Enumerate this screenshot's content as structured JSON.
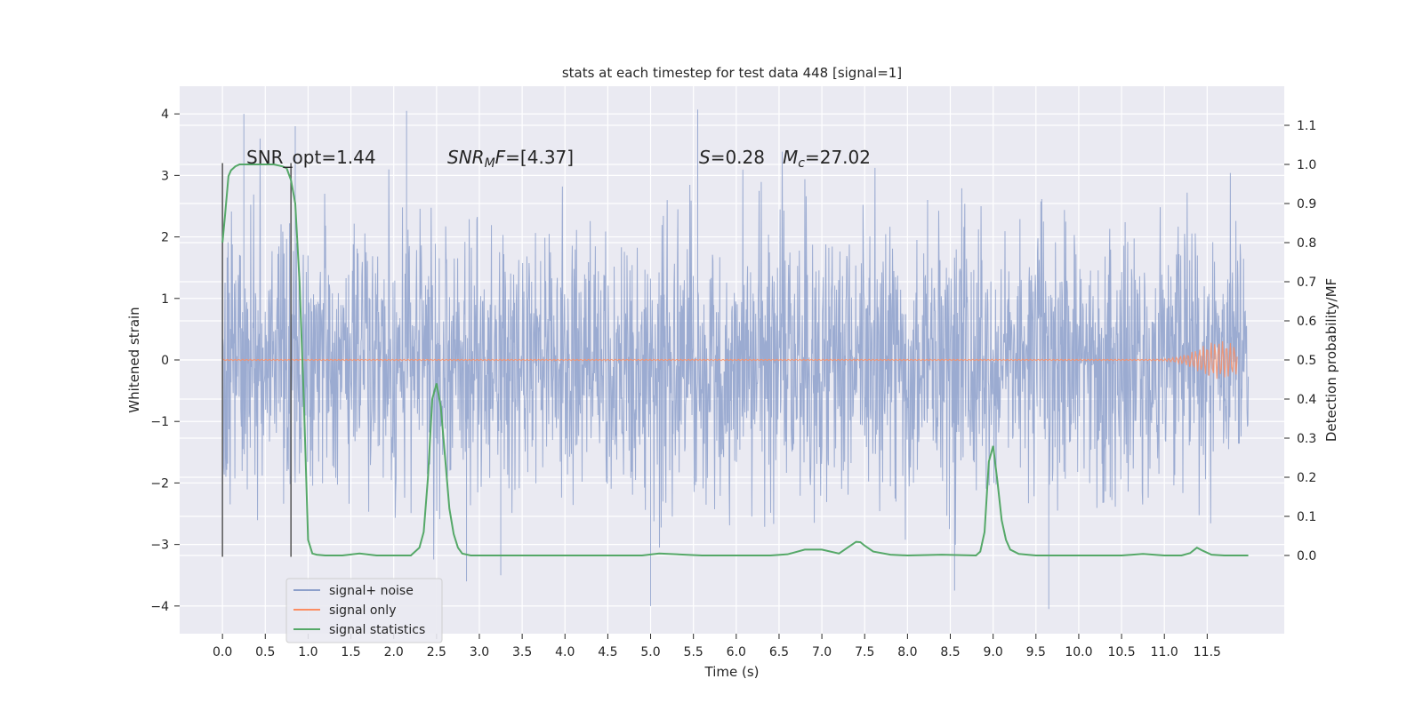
{
  "chart_data": {
    "type": "line",
    "title": "stats at each timestep for test data 448 [signal=1]",
    "xlabel": "Time (s)",
    "ylabel_left": "Whitened strain",
    "ylabel_right": "Detection probability/MF",
    "xlim": [
      -0.5,
      12.4
    ],
    "ylim_left": [
      -4.45,
      4.45
    ],
    "ylim_right": [
      -0.2,
      1.2
    ],
    "xticks": [
      0.0,
      0.5,
      1.0,
      1.5,
      2.0,
      2.5,
      3.0,
      3.5,
      4.0,
      4.5,
      5.0,
      5.5,
      6.0,
      6.5,
      7.0,
      7.5,
      8.0,
      8.5,
      9.0,
      9.5,
      10.0,
      10.5,
      11.0,
      11.5
    ],
    "xtick_labels": [
      "0.0",
      "0.5",
      "1.0",
      "1.5",
      "2.0",
      "2.5",
      "3.0",
      "3.5",
      "4.0",
      "4.5",
      "5.0",
      "5.5",
      "6.0",
      "6.5",
      "7.0",
      "7.5",
      "8.0",
      "8.5",
      "9.0",
      "9.5",
      "10.0",
      "10.5",
      "11.0",
      "11.5"
    ],
    "yticks_left": [
      -4,
      -3,
      -2,
      -1,
      0,
      1,
      2,
      3,
      4
    ],
    "ytick_labels_left": [
      "−4",
      "−3",
      "−2",
      "−1",
      "0",
      "1",
      "2",
      "3",
      "4"
    ],
    "yticks_right": [
      0.0,
      0.1,
      0.2,
      0.3,
      0.4,
      0.5,
      0.6,
      0.7,
      0.8,
      0.9,
      1.0,
      1.1
    ],
    "ytick_labels_right": [
      "0.0",
      "0.1",
      "0.2",
      "0.3",
      "0.4",
      "0.5",
      "0.6",
      "0.7",
      "0.8",
      "0.9",
      "1.0",
      "1.1"
    ],
    "grid": true,
    "legend_position": "lower-left",
    "annotations": {
      "snr_opt": "SNR_opt=1.44",
      "snr_mf_italic": "SNR",
      "snr_mf_sub": "M",
      "snr_mf_rest_italic": "F",
      "snr_mf_value": "=[4.37]",
      "s_symbol": "S",
      "s_value": "=0.28",
      "mc_symbol": "M",
      "mc_sub": "c",
      "mc_value": "=27.02"
    },
    "series": [
      {
        "name": "signal+ noise",
        "color": "#8da0cb",
        "axis": "left",
        "kind": "noise",
        "x_range": [
          0.0,
          11.98
        ],
        "envelope": {
          "typical_abs": 1.3,
          "peak_abs": 4.05
        },
        "notable_peaks": [
          [
            0.25,
            4.0
          ],
          [
            0.85,
            3.8
          ],
          [
            2.15,
            4.05
          ],
          [
            5.55,
            4.07
          ],
          [
            2.85,
            -3.6
          ],
          [
            3.25,
            -3.5
          ],
          [
            5.0,
            -4.0
          ],
          [
            8.55,
            -3.75
          ],
          [
            9.65,
            -4.05
          ]
        ]
      },
      {
        "name": "signal only",
        "color": "#fc8d62",
        "axis": "left",
        "kind": "chirp",
        "x_range": [
          0.0,
          11.85
        ],
        "peak_time": 11.65,
        "peak_abs": 0.3
      },
      {
        "name": "signal statistics",
        "color": "#55a868",
        "axis": "right",
        "kind": "line",
        "x": [
          0.0,
          0.03,
          0.07,
          0.1,
          0.15,
          0.2,
          0.3,
          0.4,
          0.5,
          0.6,
          0.7,
          0.75,
          0.8,
          0.85,
          0.9,
          0.95,
          1.0,
          1.05,
          1.1,
          1.2,
          1.4,
          1.6,
          1.8,
          2.0,
          2.2,
          2.3,
          2.35,
          2.4,
          2.45,
          2.5,
          2.55,
          2.6,
          2.65,
          2.7,
          2.75,
          2.8,
          2.9,
          3.2,
          4.0,
          4.9,
          5.1,
          5.6,
          6.0,
          6.4,
          6.6,
          6.8,
          7.0,
          7.2,
          7.3,
          7.4,
          7.45,
          7.5,
          7.6,
          7.8,
          8.0,
          8.4,
          8.8,
          8.85,
          8.9,
          8.95,
          9.0,
          9.05,
          9.1,
          9.15,
          9.2,
          9.3,
          9.5,
          10.0,
          10.5,
          10.75,
          11.0,
          11.2,
          11.3,
          11.38,
          11.45,
          11.55,
          11.7,
          11.8,
          11.98
        ],
        "y": [
          0.8,
          0.87,
          0.97,
          0.985,
          0.995,
          1.0,
          1.0,
          1.0,
          1.0,
          1.0,
          0.995,
          0.99,
          0.96,
          0.9,
          0.7,
          0.4,
          0.04,
          0.005,
          0.002,
          0.0,
          0.0,
          0.005,
          0.0,
          0.0,
          0.0,
          0.02,
          0.06,
          0.2,
          0.4,
          0.44,
          0.38,
          0.25,
          0.12,
          0.055,
          0.02,
          0.005,
          0.0,
          0.0,
          0.0,
          0.0,
          0.005,
          0.0,
          0.0,
          0.0,
          0.003,
          0.015,
          0.015,
          0.005,
          0.02,
          0.035,
          0.034,
          0.025,
          0.01,
          0.002,
          0.0,
          0.002,
          0.0,
          0.01,
          0.06,
          0.24,
          0.28,
          0.19,
          0.09,
          0.04,
          0.015,
          0.004,
          0.0,
          0.0,
          0.0,
          0.004,
          0.0,
          0.0,
          0.006,
          0.02,
          0.012,
          0.002,
          0.0,
          0.0,
          0.0
        ]
      }
    ],
    "vertical_markers": [
      {
        "x": 0.0,
        "ymin": -3.2,
        "ymax": 3.2,
        "color": "#555555"
      },
      {
        "x": 0.8,
        "ymin": -3.2,
        "ymax": 3.2,
        "color": "#555555"
      }
    ]
  }
}
